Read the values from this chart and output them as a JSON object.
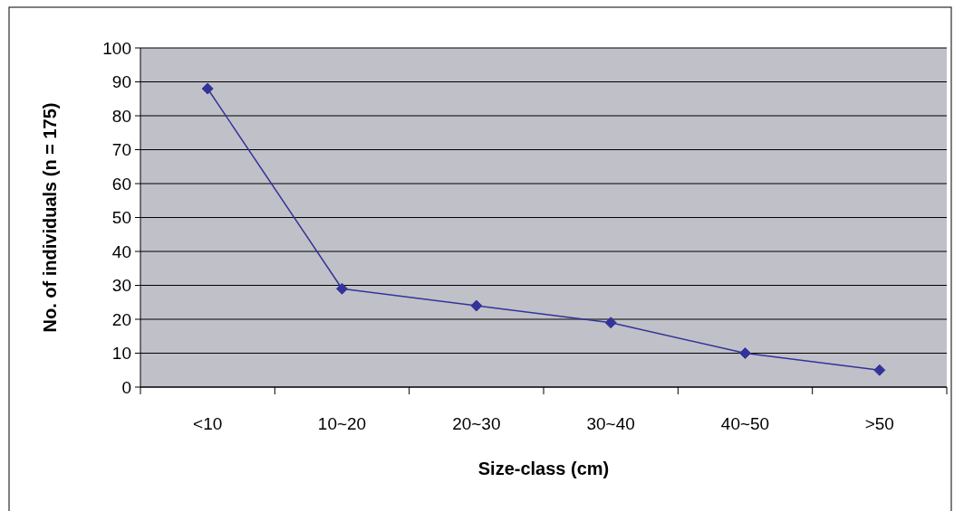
{
  "chart_data": {
    "type": "line",
    "xlabel": "Size-class (cm)",
    "ylabel": "No. of individuals (n = 175)",
    "categories": [
      "<10",
      "10~20",
      "20~30",
      "30~40",
      "40~50",
      ">50"
    ],
    "series": [
      {
        "color": "#333399",
        "values": [
          88,
          29,
          24,
          19,
          10,
          5
        ]
      }
    ],
    "ylim": [
      0,
      100
    ],
    "yticks": [
      0,
      10,
      20,
      30,
      40,
      50,
      60,
      70,
      80,
      90,
      100
    ],
    "grid": "y",
    "marker": "diamond",
    "line_style": "solid"
  }
}
